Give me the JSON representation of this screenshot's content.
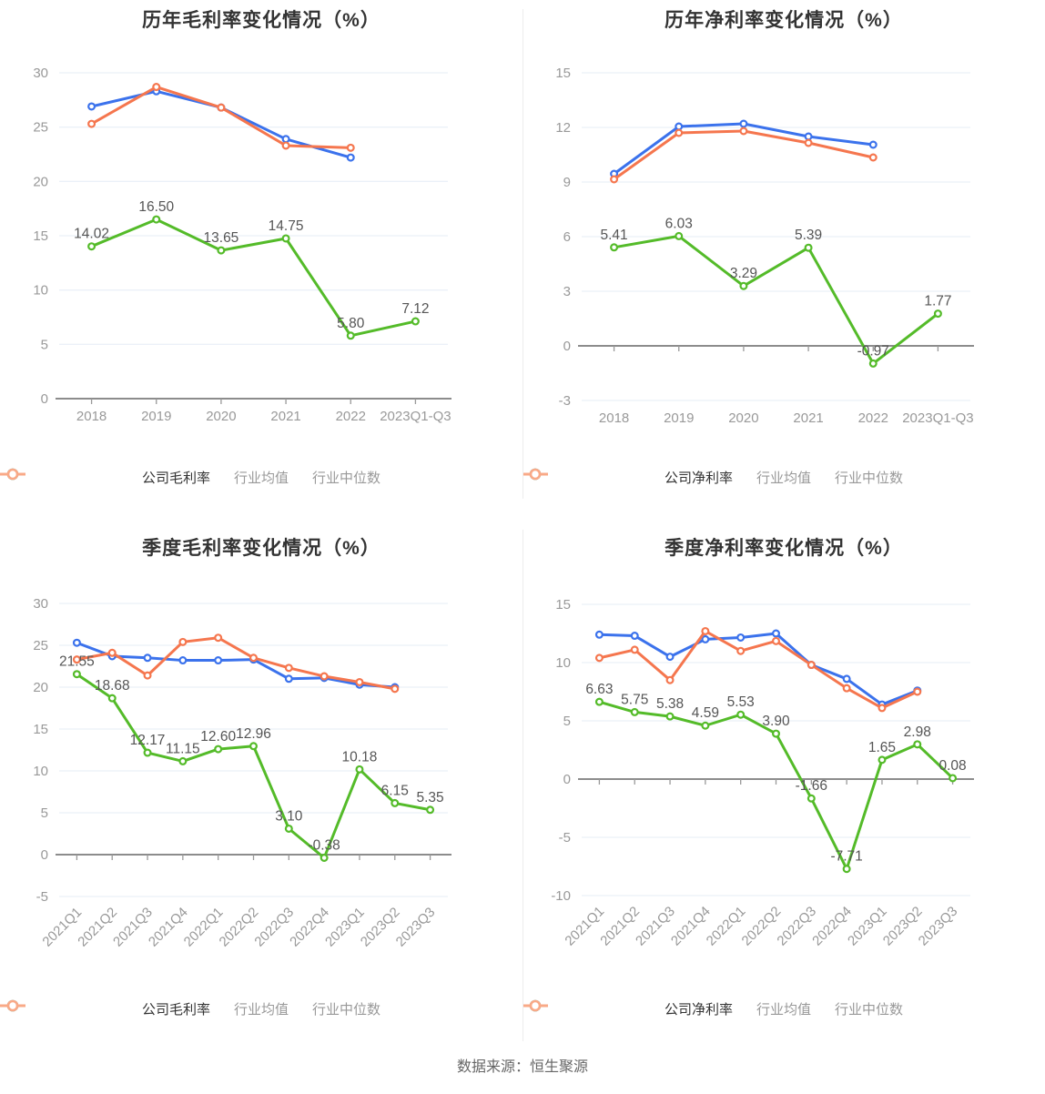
{
  "footer": {
    "source": "数据来源：恒生聚源"
  },
  "colors": {
    "company": "#54bb29",
    "industry_avg": "#3b72ec",
    "industry_median": "#f5764e",
    "legend_avg_icon": "#8fb0f5",
    "legend_median_icon": "#f9a987",
    "data_label": "#555555",
    "axis_text": "#999999",
    "grid_line": "#ebf0f8",
    "axis_line": "#8c8c8c"
  },
  "chart_data": [
    {
      "type": "line",
      "title": "历年毛利率变化情况（%）",
      "xlabel": "",
      "ylabel": "",
      "grid": true,
      "legend_position": "bottom",
      "categories": [
        "2018",
        "2019",
        "2020",
        "2021",
        "2022",
        "2023Q1-Q3"
      ],
      "ylim": [
        0,
        30
      ],
      "ytick_step": 5,
      "yticks": [
        0,
        5,
        10,
        15,
        20,
        25,
        30
      ],
      "series": [
        {
          "name": "公司毛利率",
          "role": "company",
          "values": [
            14.02,
            16.5,
            13.65,
            14.75,
            5.8,
            7.12
          ],
          "labels": [
            "14.02",
            "16.50",
            "13.65",
            "14.75",
            "5.80",
            "7.12"
          ]
        },
        {
          "name": "行业均值",
          "role": "industry_avg",
          "values": [
            26.9,
            28.3,
            26.8,
            23.9,
            22.2
          ]
        },
        {
          "name": "行业中位数",
          "role": "industry_median",
          "values": [
            25.3,
            28.7,
            26.8,
            23.3,
            23.1
          ]
        }
      ]
    },
    {
      "type": "line",
      "title": "历年净利率变化情况（%）",
      "xlabel": "",
      "ylabel": "",
      "grid": true,
      "legend_position": "bottom",
      "categories": [
        "2018",
        "2019",
        "2020",
        "2021",
        "2022",
        "2023Q1-Q3"
      ],
      "ylim": [
        -3,
        15
      ],
      "ytick_step": 3,
      "yticks": [
        -3,
        0,
        3,
        6,
        9,
        12,
        15
      ],
      "series": [
        {
          "name": "公司净利率",
          "role": "company",
          "values": [
            5.41,
            6.03,
            3.29,
            5.39,
            -0.97,
            1.77
          ],
          "labels": [
            "5.41",
            "6.03",
            "3.29",
            "5.39",
            "-0.97",
            "1.77"
          ]
        },
        {
          "name": "行业均值",
          "role": "industry_avg",
          "values": [
            9.45,
            12.05,
            12.2,
            11.5,
            11.05
          ]
        },
        {
          "name": "行业中位数",
          "role": "industry_median",
          "values": [
            9.15,
            11.7,
            11.8,
            11.15,
            10.35
          ]
        }
      ]
    },
    {
      "type": "line",
      "title": "季度毛利率变化情况（%）",
      "xlabel": "",
      "ylabel": "",
      "grid": true,
      "legend_position": "bottom",
      "categories": [
        "2021Q1",
        "2021Q2",
        "2021Q3",
        "2021Q4",
        "2022Q1",
        "2022Q2",
        "2022Q3",
        "2022Q4",
        "2023Q1",
        "2023Q2",
        "2023Q3"
      ],
      "ylim": [
        -5,
        30
      ],
      "ytick_step": 5,
      "yticks": [
        -5,
        0,
        5,
        10,
        15,
        20,
        25,
        30
      ],
      "series": [
        {
          "name": "公司毛利率",
          "role": "company",
          "values": [
            21.55,
            18.68,
            12.17,
            11.15,
            12.6,
            12.96,
            3.1,
            -0.38,
            10.18,
            6.15,
            5.35
          ],
          "labels": [
            "21.55",
            "18.68",
            "12.17",
            "11.15",
            "12.60",
            "12.96",
            "3.10",
            "-0.38",
            "10.18",
            "6.15",
            "5.35"
          ]
        },
        {
          "name": "行业均值",
          "role": "industry_avg",
          "values": [
            25.3,
            23.7,
            23.5,
            23.2,
            23.2,
            23.3,
            21.0,
            21.1,
            20.3,
            20.0
          ]
        },
        {
          "name": "行业中位数",
          "role": "industry_median",
          "values": [
            23.3,
            24.1,
            21.4,
            25.4,
            25.9,
            23.5,
            22.3,
            21.3,
            20.6,
            19.8
          ]
        }
      ]
    },
    {
      "type": "line",
      "title": "季度净利率变化情况（%）",
      "xlabel": "",
      "ylabel": "",
      "grid": true,
      "legend_position": "bottom",
      "categories": [
        "2021Q1",
        "2021Q2",
        "2021Q3",
        "2021Q4",
        "2022Q1",
        "2022Q2",
        "2022Q3",
        "2022Q4",
        "2023Q1",
        "2023Q2",
        "2023Q3"
      ],
      "ylim": [
        -10,
        15
      ],
      "ytick_step": 5,
      "yticks": [
        -10,
        -5,
        0,
        5,
        10,
        15
      ],
      "series": [
        {
          "name": "公司净利率",
          "role": "company",
          "values": [
            6.63,
            5.75,
            5.38,
            4.59,
            5.53,
            3.9,
            -1.66,
            -7.71,
            1.65,
            2.98,
            0.08
          ],
          "labels": [
            "6.63",
            "5.75",
            "5.38",
            "4.59",
            "5.53",
            "3.90",
            "-1.66",
            "-7.71",
            "1.65",
            "2.98",
            "0.08"
          ]
        },
        {
          "name": "行业均值",
          "role": "industry_avg",
          "values": [
            12.4,
            12.3,
            10.5,
            12.0,
            12.15,
            12.5,
            9.8,
            8.6,
            6.4,
            7.6
          ]
        },
        {
          "name": "行业中位数",
          "role": "industry_median",
          "values": [
            10.4,
            11.1,
            8.5,
            12.7,
            11.0,
            11.85,
            9.8,
            7.8,
            6.1,
            7.5
          ]
        }
      ]
    }
  ]
}
